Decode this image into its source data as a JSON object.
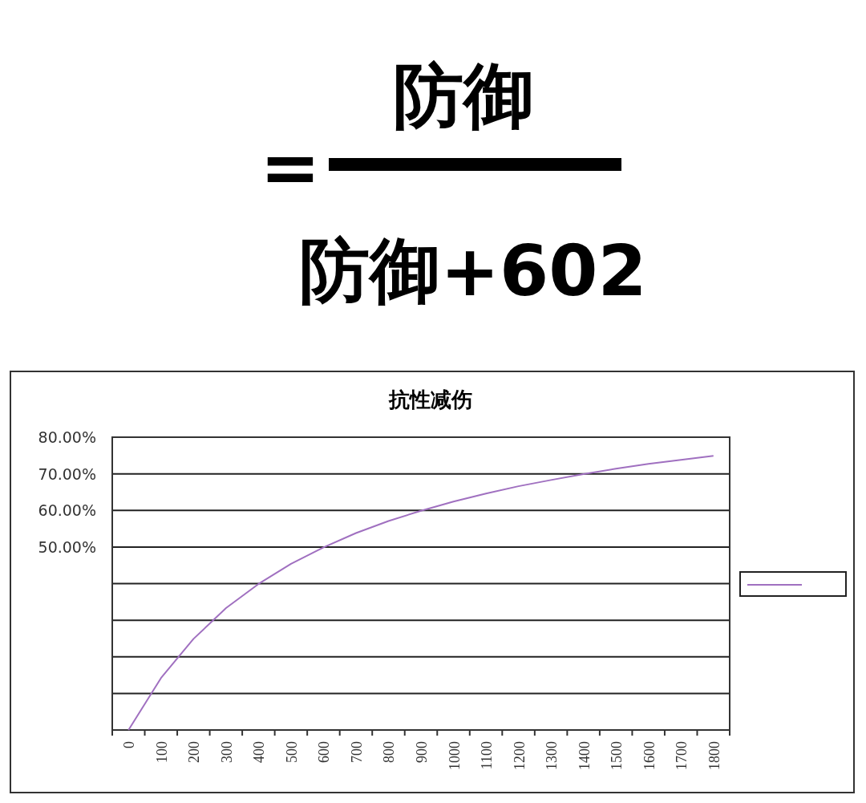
{
  "chart_data": {
    "type": "line",
    "title": "抗性减伤",
    "annotations": [
      "=",
      "防御",
      "防御+602"
    ],
    "categories": [
      "0",
      "100",
      "200",
      "300",
      "400",
      "500",
      "600",
      "700",
      "800",
      "900",
      "1000",
      "1100",
      "1200",
      "1300",
      "1400",
      "1500",
      "1600",
      "1700",
      "1800"
    ],
    "series": [
      {
        "color": "#a070c0",
        "values": [
          0,
          14.2,
          24.9,
          33.3,
          39.9,
          45.4,
          49.9,
          53.8,
          57.1,
          59.9,
          62.4,
          64.6,
          66.6,
          68.3,
          69.9,
          71.4,
          72.7,
          73.8,
          74.9
        ]
      }
    ],
    "ylim": [
      0,
      80
    ],
    "yticks": [
      {
        "value": 0,
        "label": null
      },
      {
        "value": 10,
        "label": null
      },
      {
        "value": 20,
        "label": null
      },
      {
        "value": 30,
        "label": null
      },
      {
        "value": 40,
        "label": null
      },
      {
        "value": 50,
        "label": "50.00%"
      },
      {
        "value": 60,
        "label": "60.00%"
      },
      {
        "value": 70,
        "label": "70.00%"
      },
      {
        "value": 80,
        "label": "80.00%"
      }
    ],
    "grid": "y",
    "marker": "none",
    "line_style": "solid"
  }
}
